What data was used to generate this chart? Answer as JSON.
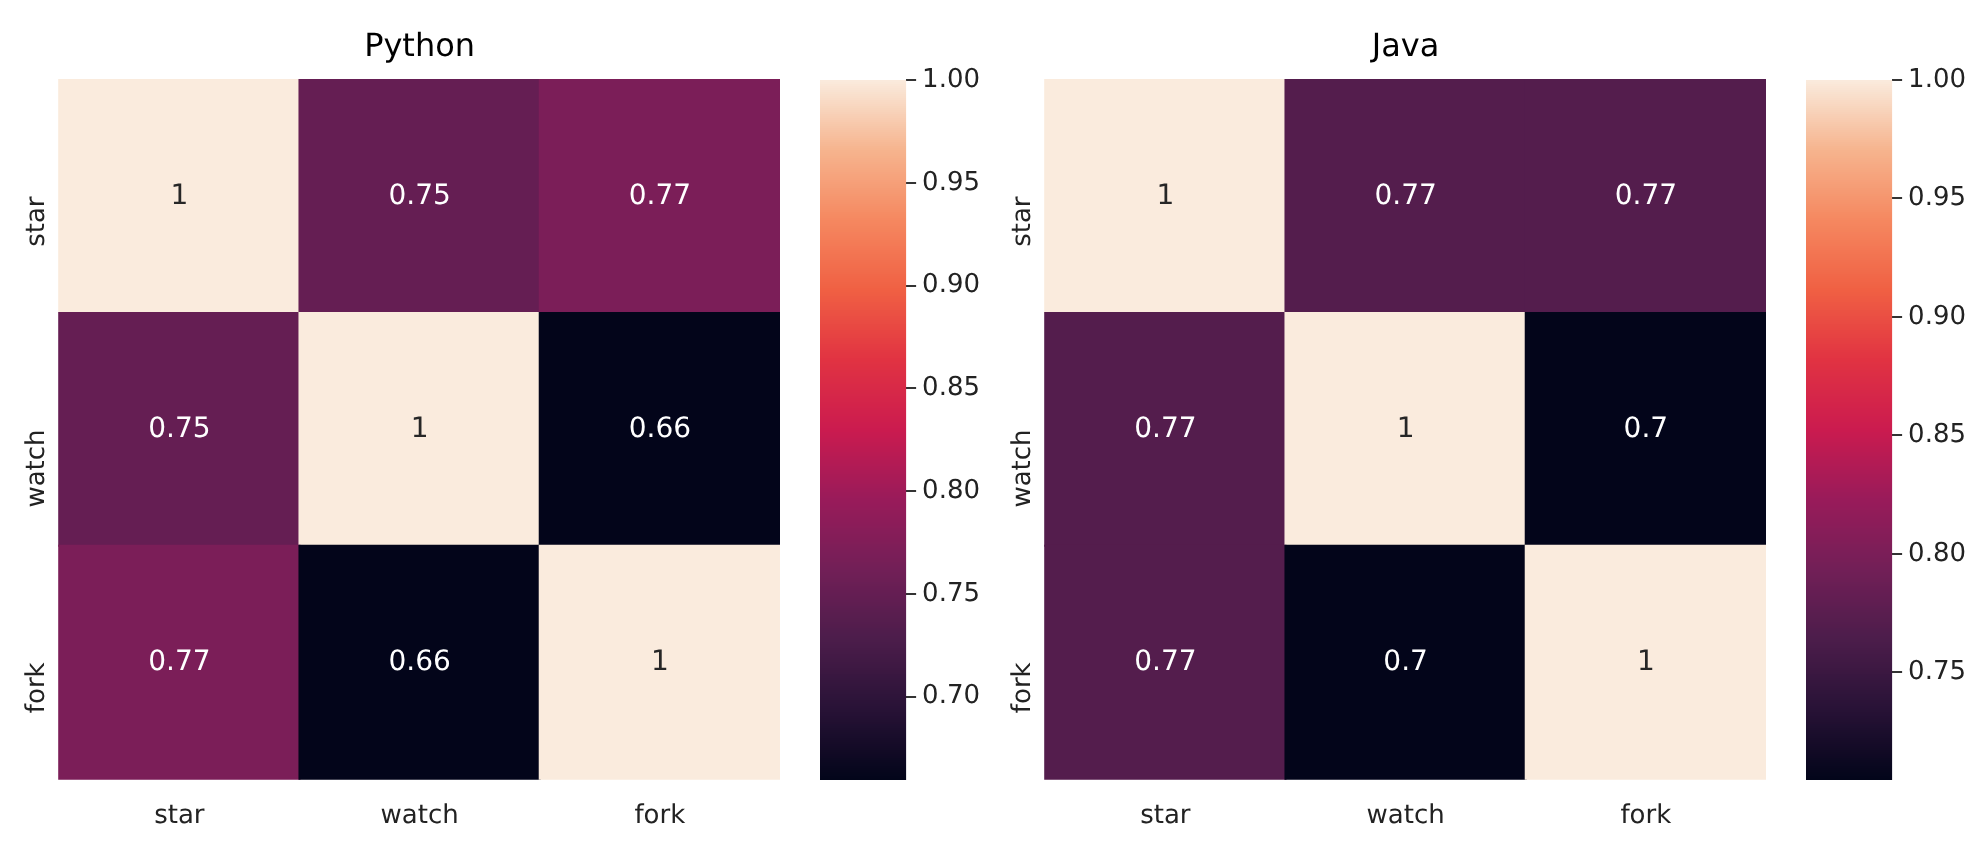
{
  "chart_data": [
    {
      "type": "heatmap",
      "title": "Python",
      "categories": [
        "star",
        "watch",
        "fork"
      ],
      "y_categories": [
        "star",
        "watch",
        "fork"
      ],
      "cells": [
        [
          1,
          0.75,
          0.77
        ],
        [
          0.75,
          1,
          0.66
        ],
        [
          0.77,
          0.66,
          1
        ]
      ],
      "clim": [
        0.66,
        1.0
      ],
      "cticks": [
        {
          "value": 0.7,
          "label": "0.70"
        },
        {
          "value": 0.75,
          "label": "0.75"
        },
        {
          "value": 0.8,
          "label": "0.80"
        },
        {
          "value": 0.85,
          "label": "0.85"
        },
        {
          "value": 0.9,
          "label": "0.90"
        },
        {
          "value": 0.95,
          "label": "0.95"
        },
        {
          "value": 1.0,
          "label": "1.00"
        }
      ],
      "data_labels": true
    },
    {
      "type": "heatmap",
      "title": "Java",
      "categories": [
        "star",
        "watch",
        "fork"
      ],
      "y_categories": [
        "star",
        "watch",
        "fork"
      ],
      "cells": [
        [
          1,
          0.77,
          0.77
        ],
        [
          0.77,
          1,
          0.7
        ],
        [
          0.77,
          0.7,
          1
        ]
      ],
      "clim": [
        0.705,
        1.0
      ],
      "cticks": [
        {
          "value": 0.75,
          "label": "0.75"
        },
        {
          "value": 0.8,
          "label": "0.80"
        },
        {
          "value": 0.85,
          "label": "0.85"
        },
        {
          "value": 0.9,
          "label": "0.90"
        },
        {
          "value": 0.95,
          "label": "0.95"
        },
        {
          "value": 1.0,
          "label": "1.00"
        }
      ],
      "data_labels": true
    }
  ]
}
